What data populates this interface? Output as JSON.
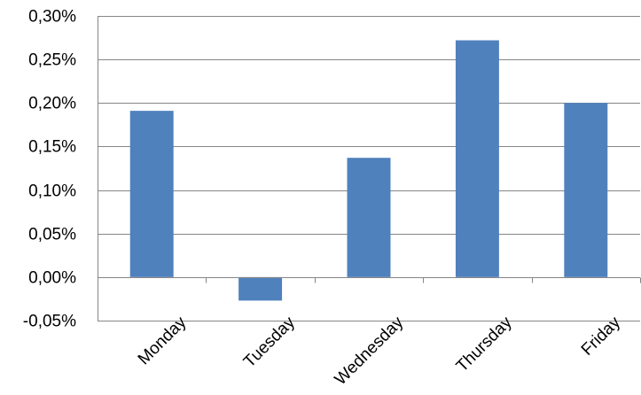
{
  "chart_data": {
    "type": "bar",
    "categories": [
      "Monday",
      "Tuesday",
      "Wednesday",
      "Thursday",
      "Friday"
    ],
    "values": [
      0.191,
      -0.027,
      0.137,
      0.272,
      0.2
    ],
    "ylim": [
      -0.05,
      0.3
    ],
    "y_ticks": [
      0.3,
      0.25,
      0.2,
      0.15,
      0.1,
      0.05,
      0.0,
      -0.05
    ],
    "y_tick_labels": [
      "0,30%",
      "0,25%",
      "0,20%",
      "0,15%",
      "0,10%",
      "0,05%",
      "0,00%",
      "-0,05%"
    ],
    "unit": "%",
    "grid": true,
    "legend": "none",
    "x_label_rotation": "-45deg",
    "bar_color": "#4f81bd",
    "gridline_color": "#868686"
  }
}
